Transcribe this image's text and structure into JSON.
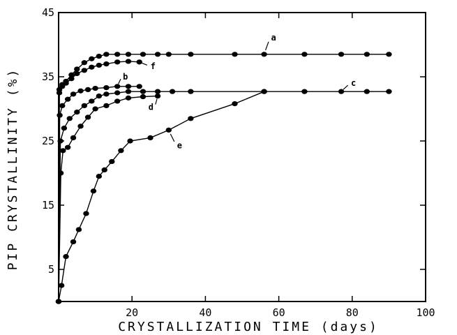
{
  "chart_data": {
    "type": "line",
    "title": "",
    "xlabel": "CRYSTALLIZATION TIME (days)",
    "ylabel": "PIP CRYSTALLINITY (%)",
    "xlim": [
      0,
      100
    ],
    "ylim": [
      0,
      45
    ],
    "x_ticks": [
      20,
      40,
      60,
      80,
      100
    ],
    "x_tick_labels": [
      "20",
      "40",
      "60",
      "80",
      "100"
    ],
    "y_ticks": [
      5,
      15,
      25,
      35,
      45
    ],
    "y_tick_labels": [
      "5",
      "15",
      "25",
      "35",
      "45"
    ],
    "grid": false,
    "series": [
      {
        "name": "a",
        "points": [
          [
            0,
            0
          ],
          [
            0.2,
            33
          ],
          [
            1,
            33.8
          ],
          [
            2,
            34.3
          ],
          [
            3.5,
            35.3
          ],
          [
            5,
            36.2
          ],
          [
            7,
            37.2
          ],
          [
            9,
            37.8
          ],
          [
            11,
            38.2
          ],
          [
            13,
            38.5
          ],
          [
            16,
            38.5
          ],
          [
            19,
            38.5
          ],
          [
            23,
            38.5
          ],
          [
            27,
            38.5
          ],
          [
            30,
            38.5
          ],
          [
            36,
            38.5
          ],
          [
            48,
            38.5
          ],
          [
            56,
            38.5
          ],
          [
            67,
            38.5
          ],
          [
            77,
            38.5
          ],
          [
            84,
            38.5
          ],
          [
            90,
            38.5
          ]
        ]
      },
      {
        "name": "f",
        "points": [
          [
            0,
            0
          ],
          [
            0.2,
            32.5
          ],
          [
            1,
            33.5
          ],
          [
            2,
            34
          ],
          [
            3.5,
            34.7
          ],
          [
            5,
            35.5
          ],
          [
            7,
            36
          ],
          [
            9,
            36.5
          ],
          [
            11,
            36.8
          ],
          [
            13,
            37
          ],
          [
            16,
            37.3
          ],
          [
            19,
            37.4
          ],
          [
            22,
            37.3
          ]
        ]
      },
      {
        "name": "b",
        "points": [
          [
            0,
            0
          ],
          [
            0.3,
            29
          ],
          [
            1,
            30.5
          ],
          [
            2.5,
            31.5
          ],
          [
            4,
            32.3
          ],
          [
            6,
            32.8
          ],
          [
            8,
            33
          ],
          [
            10,
            33.2
          ],
          [
            13,
            33.3
          ],
          [
            16,
            33.5
          ],
          [
            19,
            33.5
          ],
          [
            22,
            33.5
          ]
        ]
      },
      {
        "name": "c",
        "points": [
          [
            0,
            0
          ],
          [
            0.5,
            25
          ],
          [
            1.5,
            27
          ],
          [
            3,
            28.5
          ],
          [
            5,
            29.5
          ],
          [
            7,
            30.5
          ],
          [
            9,
            31.2
          ],
          [
            11,
            32
          ],
          [
            13,
            32.3
          ],
          [
            16,
            32.5
          ],
          [
            19,
            32.7
          ],
          [
            23,
            32.7
          ],
          [
            27,
            32.7
          ],
          [
            31,
            32.7
          ],
          [
            36,
            32.7
          ],
          [
            56,
            32.7
          ],
          [
            67,
            32.7
          ],
          [
            77,
            32.7
          ],
          [
            84,
            32.7
          ],
          [
            90,
            32.7
          ]
        ]
      },
      {
        "name": "d",
        "points": [
          [
            0,
            0
          ],
          [
            0.6,
            20
          ],
          [
            1.2,
            23.5
          ],
          [
            2.5,
            24
          ],
          [
            4,
            25.5
          ],
          [
            6,
            27.3
          ],
          [
            8,
            28.7
          ],
          [
            10,
            30
          ],
          [
            13,
            30.5
          ],
          [
            16,
            31.2
          ],
          [
            19,
            31.7
          ],
          [
            23,
            31.9
          ],
          [
            27,
            32
          ]
        ]
      },
      {
        "name": "e",
        "points": [
          [
            0,
            0
          ],
          [
            0.8,
            2.5
          ],
          [
            2,
            7
          ],
          [
            4,
            9.3
          ],
          [
            5.5,
            11.2
          ],
          [
            7.5,
            13.7
          ],
          [
            9.5,
            17.2
          ],
          [
            11,
            19.5
          ],
          [
            12.5,
            20.5
          ],
          [
            14.5,
            21.8
          ],
          [
            17,
            23.5
          ],
          [
            19.5,
            25
          ],
          [
            25,
            25.5
          ],
          [
            30,
            26.7
          ],
          [
            36,
            28.5
          ],
          [
            48,
            30.8
          ],
          [
            56,
            32.7
          ]
        ]
      }
    ]
  }
}
